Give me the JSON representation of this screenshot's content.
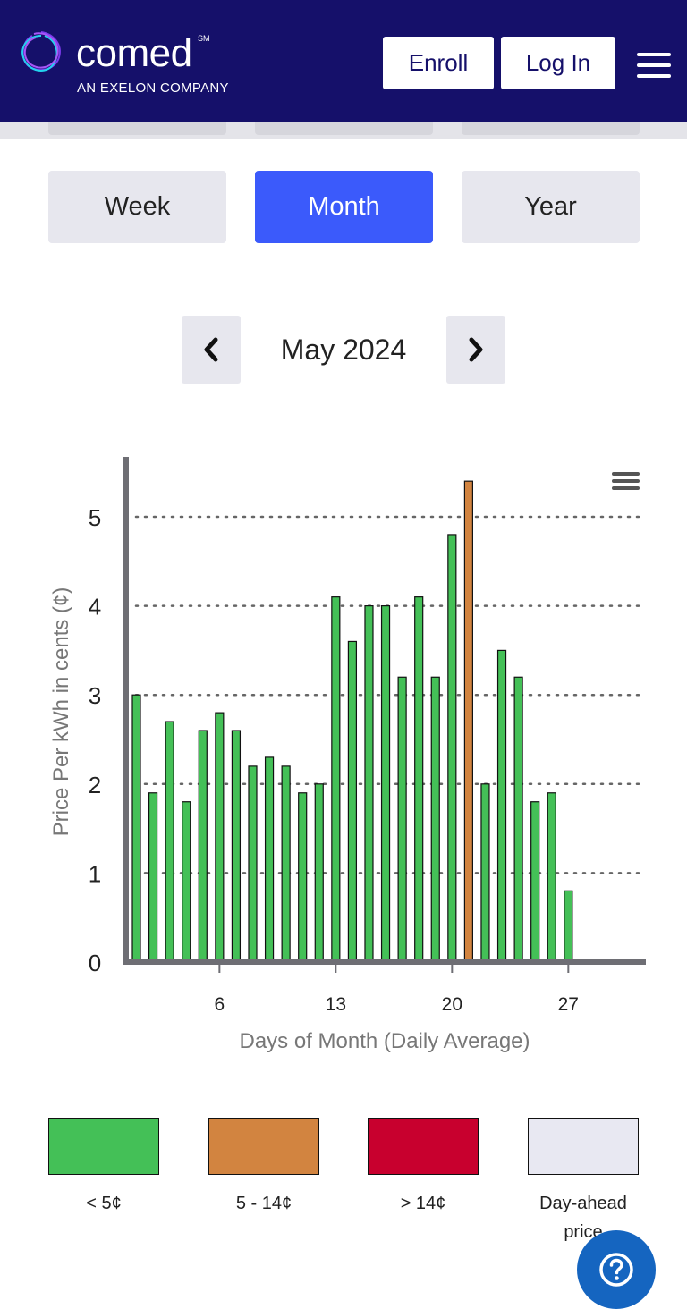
{
  "header": {
    "brand": "comed",
    "brand_mark": "SM",
    "tagline": "AN EXELON COMPANY",
    "enroll_label": "Enroll",
    "login_label": "Log In",
    "menu_icon": "hamburger-icon",
    "background_color": "#15106a"
  },
  "range_tabs": [
    {
      "label": "Week",
      "active": false
    },
    {
      "label": "Month",
      "active": true
    },
    {
      "label": "Year",
      "active": false
    }
  ],
  "period": {
    "label": "May 2024",
    "prev_icon": "chevron-left-icon",
    "next_icon": "chevron-right-icon"
  },
  "chart_data": {
    "type": "bar",
    "ylabel": "Price Per kWh in cents (¢)",
    "xlabel": "Days of Month (Daily Average)",
    "ylim": [
      0,
      5.6
    ],
    "xlim": [
      1,
      31
    ],
    "yticks": [
      0,
      1,
      2,
      3,
      4,
      5
    ],
    "xticks": [
      6,
      13,
      20,
      27
    ],
    "grid": true,
    "days": [
      1,
      2,
      3,
      4,
      5,
      6,
      7,
      8,
      9,
      10,
      11,
      12,
      13,
      14,
      15,
      16,
      17,
      18,
      19,
      20,
      21,
      22,
      23,
      24,
      25,
      26,
      27
    ],
    "values": [
      3.0,
      1.9,
      2.7,
      1.8,
      2.6,
      2.8,
      2.6,
      2.2,
      2.3,
      2.2,
      1.9,
      2.0,
      4.1,
      3.6,
      4.0,
      4.0,
      3.2,
      4.1,
      3.2,
      4.8,
      5.4,
      2.0,
      3.5,
      3.2,
      1.8,
      1.9,
      0.8
    ],
    "colors": {
      "low": "#44c057",
      "mid": "#d28440",
      "high": "#c8002e"
    },
    "menu_icon": "chart-menu-icon"
  },
  "legend": [
    {
      "label": "< 5¢",
      "color": "#44c057"
    },
    {
      "label": "5 - 14¢",
      "color": "#d28440"
    },
    {
      "label": "> 14¢",
      "color": "#c8002e"
    },
    {
      "label": "Day-ahead price",
      "color": "#e8e8f2"
    }
  ],
  "help": {
    "icon": "question-icon",
    "color": "#1565c0"
  }
}
